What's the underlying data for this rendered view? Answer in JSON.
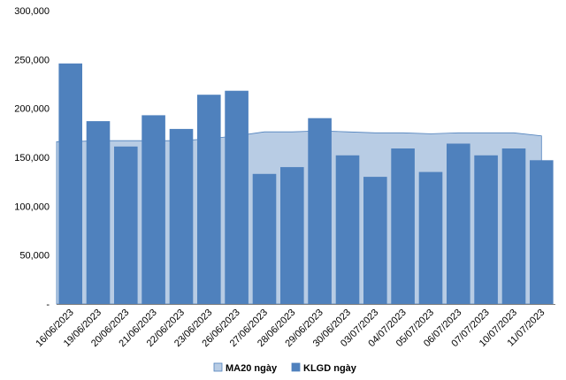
{
  "chart_data": {
    "type": "bar",
    "categories": [
      "16/06/2023",
      "19/06/2023",
      "20/06/2023",
      "21/06/2023",
      "22/06/2023",
      "23/06/2023",
      "26/06/2023",
      "27/06/2023",
      "28/06/2023",
      "29/06/2023",
      "30/06/2023",
      "03/07/2023",
      "04/07/2023",
      "05/07/2023",
      "06/07/2023",
      "07/07/2023",
      "10/07/2023",
      "11/07/2023"
    ],
    "series": [
      {
        "name": "KLGD ngày",
        "type": "bar",
        "color": "#4f81bd",
        "values": [
          246000,
          187000,
          161000,
          193000,
          179000,
          214000,
          218000,
          133000,
          140000,
          190000,
          152000,
          130000,
          159000,
          135000,
          164000,
          152000,
          159000,
          147000
        ]
      },
      {
        "name": "MA20 ngày",
        "type": "area",
        "color": "#b8cce4",
        "edge_color": "#4f81bd",
        "values": [
          166000,
          167000,
          167000,
          167000,
          167000,
          169000,
          172000,
          176000,
          176000,
          177000,
          176000,
          175000,
          175000,
          174000,
          175000,
          175000,
          175000,
          172000
        ]
      }
    ],
    "y_ticks": [
      "-",
      "50,000",
      "100,000",
      "150,000",
      "200,000",
      "250,000",
      "300,000"
    ],
    "y_tick_values": [
      0,
      50000,
      100000,
      150000,
      200000,
      250000,
      300000
    ],
    "ylim": [
      0,
      300000
    ],
    "grid": false,
    "legend_position": "bottom",
    "legend": [
      {
        "label": "MA20 ngày",
        "swatch_color": "#b8cce4"
      },
      {
        "label": "KLGD ngày",
        "swatch_color": "#4f81bd"
      }
    ],
    "title": "",
    "xlabel": "",
    "ylabel": ""
  }
}
